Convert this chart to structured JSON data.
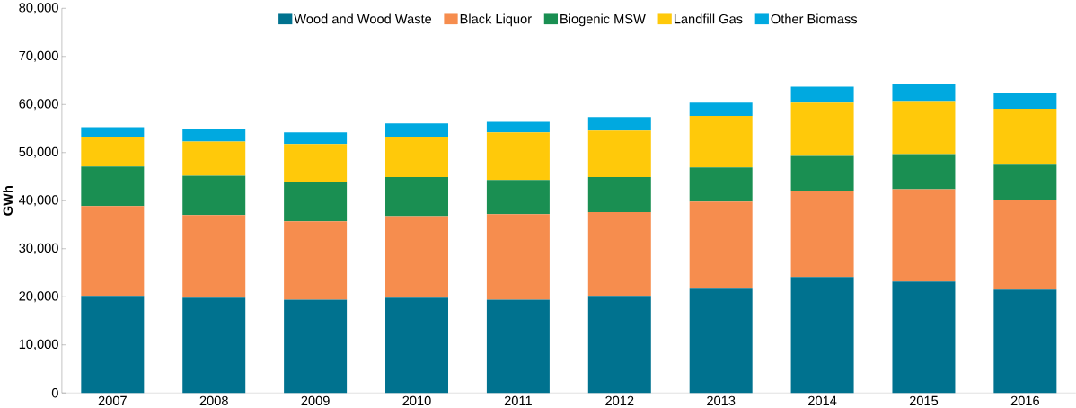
{
  "chart_data": {
    "type": "bar",
    "stacked": true,
    "ylabel": "GWh",
    "categories": [
      "2007",
      "2008",
      "2009",
      "2010",
      "2011",
      "2012",
      "2013",
      "2014",
      "2015",
      "2016"
    ],
    "series": [
      {
        "name": "Wood and Wood Waste",
        "color": "#00728f",
        "values": [
          20200,
          19800,
          19400,
          19800,
          19400,
          20200,
          21700,
          24100,
          23200,
          21500
        ]
      },
      {
        "name": "Black Liquor",
        "color": "#f68d4e",
        "values": [
          18700,
          17200,
          16300,
          17000,
          17800,
          17400,
          18100,
          18000,
          19200,
          18700
        ]
      },
      {
        "name": "Biogenic MSW",
        "color": "#1a8f52",
        "values": [
          8200,
          8200,
          8200,
          8100,
          7100,
          7300,
          7100,
          7200,
          7300,
          7300
        ]
      },
      {
        "name": "Landfill Gas",
        "color": "#ffc90a",
        "values": [
          6200,
          7100,
          7900,
          8400,
          9900,
          9700,
          10700,
          11100,
          11000,
          11600
        ]
      },
      {
        "name": "Other Biomass",
        "color": "#00a9e0",
        "values": [
          2000,
          2700,
          2400,
          2800,
          2200,
          2800,
          2800,
          3300,
          3600,
          3300
        ]
      }
    ],
    "ylim": [
      0,
      80000
    ],
    "yticks": [
      {
        "value": 0,
        "label": "0"
      },
      {
        "value": 10000,
        "label": "10,000"
      },
      {
        "value": 20000,
        "label": "20,000"
      },
      {
        "value": 30000,
        "label": "30,000"
      },
      {
        "value": 40000,
        "label": "40,000"
      },
      {
        "value": 50000,
        "label": "50,000"
      },
      {
        "value": 60000,
        "label": "60,000"
      },
      {
        "value": 70000,
        "label": "70,000"
      },
      {
        "value": 80000,
        "label": "80,000"
      }
    ],
    "grid": false,
    "legend": "top"
  }
}
